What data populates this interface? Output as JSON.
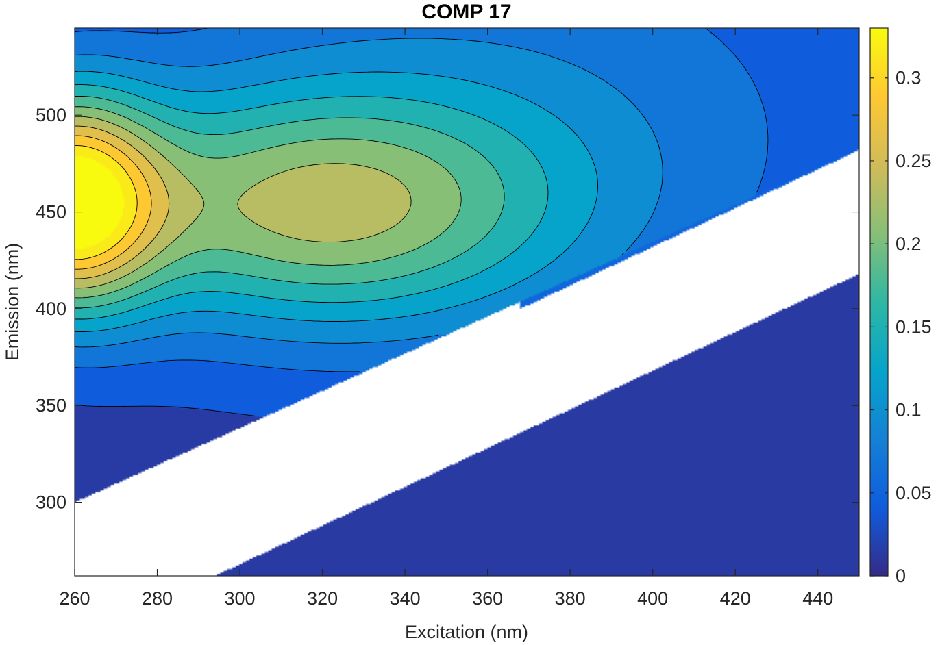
{
  "chart_data": {
    "type": "contour",
    "title": "COMP 17",
    "xlabel": "Excitation (nm)",
    "ylabel": "Emission (nm)",
    "xlim": [
      260,
      450
    ],
    "ylim": [
      262,
      545
    ],
    "xticks": [
      260,
      280,
      300,
      320,
      340,
      360,
      380,
      400,
      420,
      440
    ],
    "yticks": [
      300,
      350,
      400,
      450,
      500
    ],
    "colorbar": {
      "range": [
        0,
        0.33
      ],
      "ticks": [
        0,
        0.05,
        0.1,
        0.15,
        0.2,
        0.25,
        0.3
      ],
      "tick_labels": [
        "0",
        "0.05",
        "0.1",
        "0.15",
        "0.2",
        "0.25",
        "0.3"
      ],
      "colormap": "parula"
    },
    "contour_levels": [
      0.0,
      0.0275,
      0.055,
      0.0825,
      0.11,
      0.1375,
      0.165,
      0.1925,
      0.22,
      0.2475,
      0.275,
      0.3025,
      0.33
    ],
    "peak": {
      "excitation": 260,
      "emission": 455,
      "intensity": 0.33
    },
    "masked_regions": [
      {
        "name": "first-order Rayleigh scatter band",
        "emission_low_at_ex_260": 300,
        "emission_high_at_ex_260": 262
      },
      {
        "name": "second-order scatter band",
        "emission_low_at_ex_360": 400
      }
    ],
    "grid": false,
    "colors": {
      "plot_background": "#ffffff",
      "axes": "#262626",
      "contour_line": "#000000"
    }
  }
}
